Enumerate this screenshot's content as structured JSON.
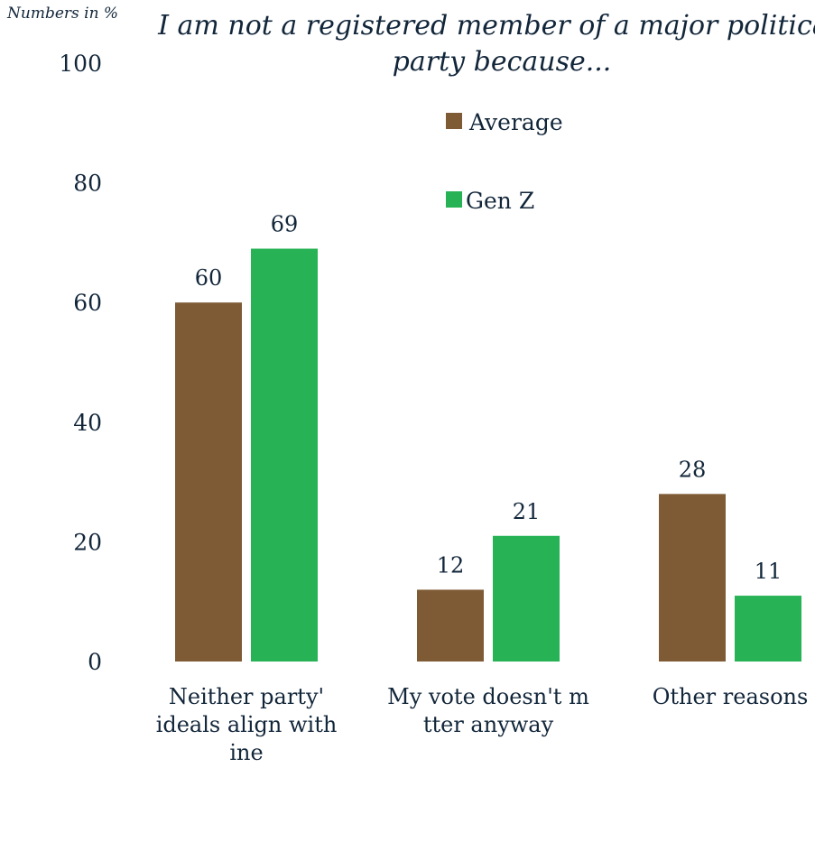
{
  "chart_data": {
    "type": "bar",
    "unit_note": "Numbers in %",
    "title": "I am not a registered member of a major political party because...",
    "categories": [
      "Neither party's ideals align with mine",
      "My vote doesn't matter anyway",
      "Other reasons"
    ],
    "series": [
      {
        "name": "Average",
        "color": "#7f5b35",
        "values": [
          60,
          12,
          28
        ]
      },
      {
        "name": "Gen Z",
        "color": "#27b255",
        "values": [
          69,
          21,
          11
        ]
      }
    ],
    "y_ticks": [
      "0",
      "20",
      "40",
      "60",
      "80",
      "100"
    ],
    "ylim": [
      0,
      100
    ],
    "grid": false,
    "legend_position": "top-right"
  }
}
